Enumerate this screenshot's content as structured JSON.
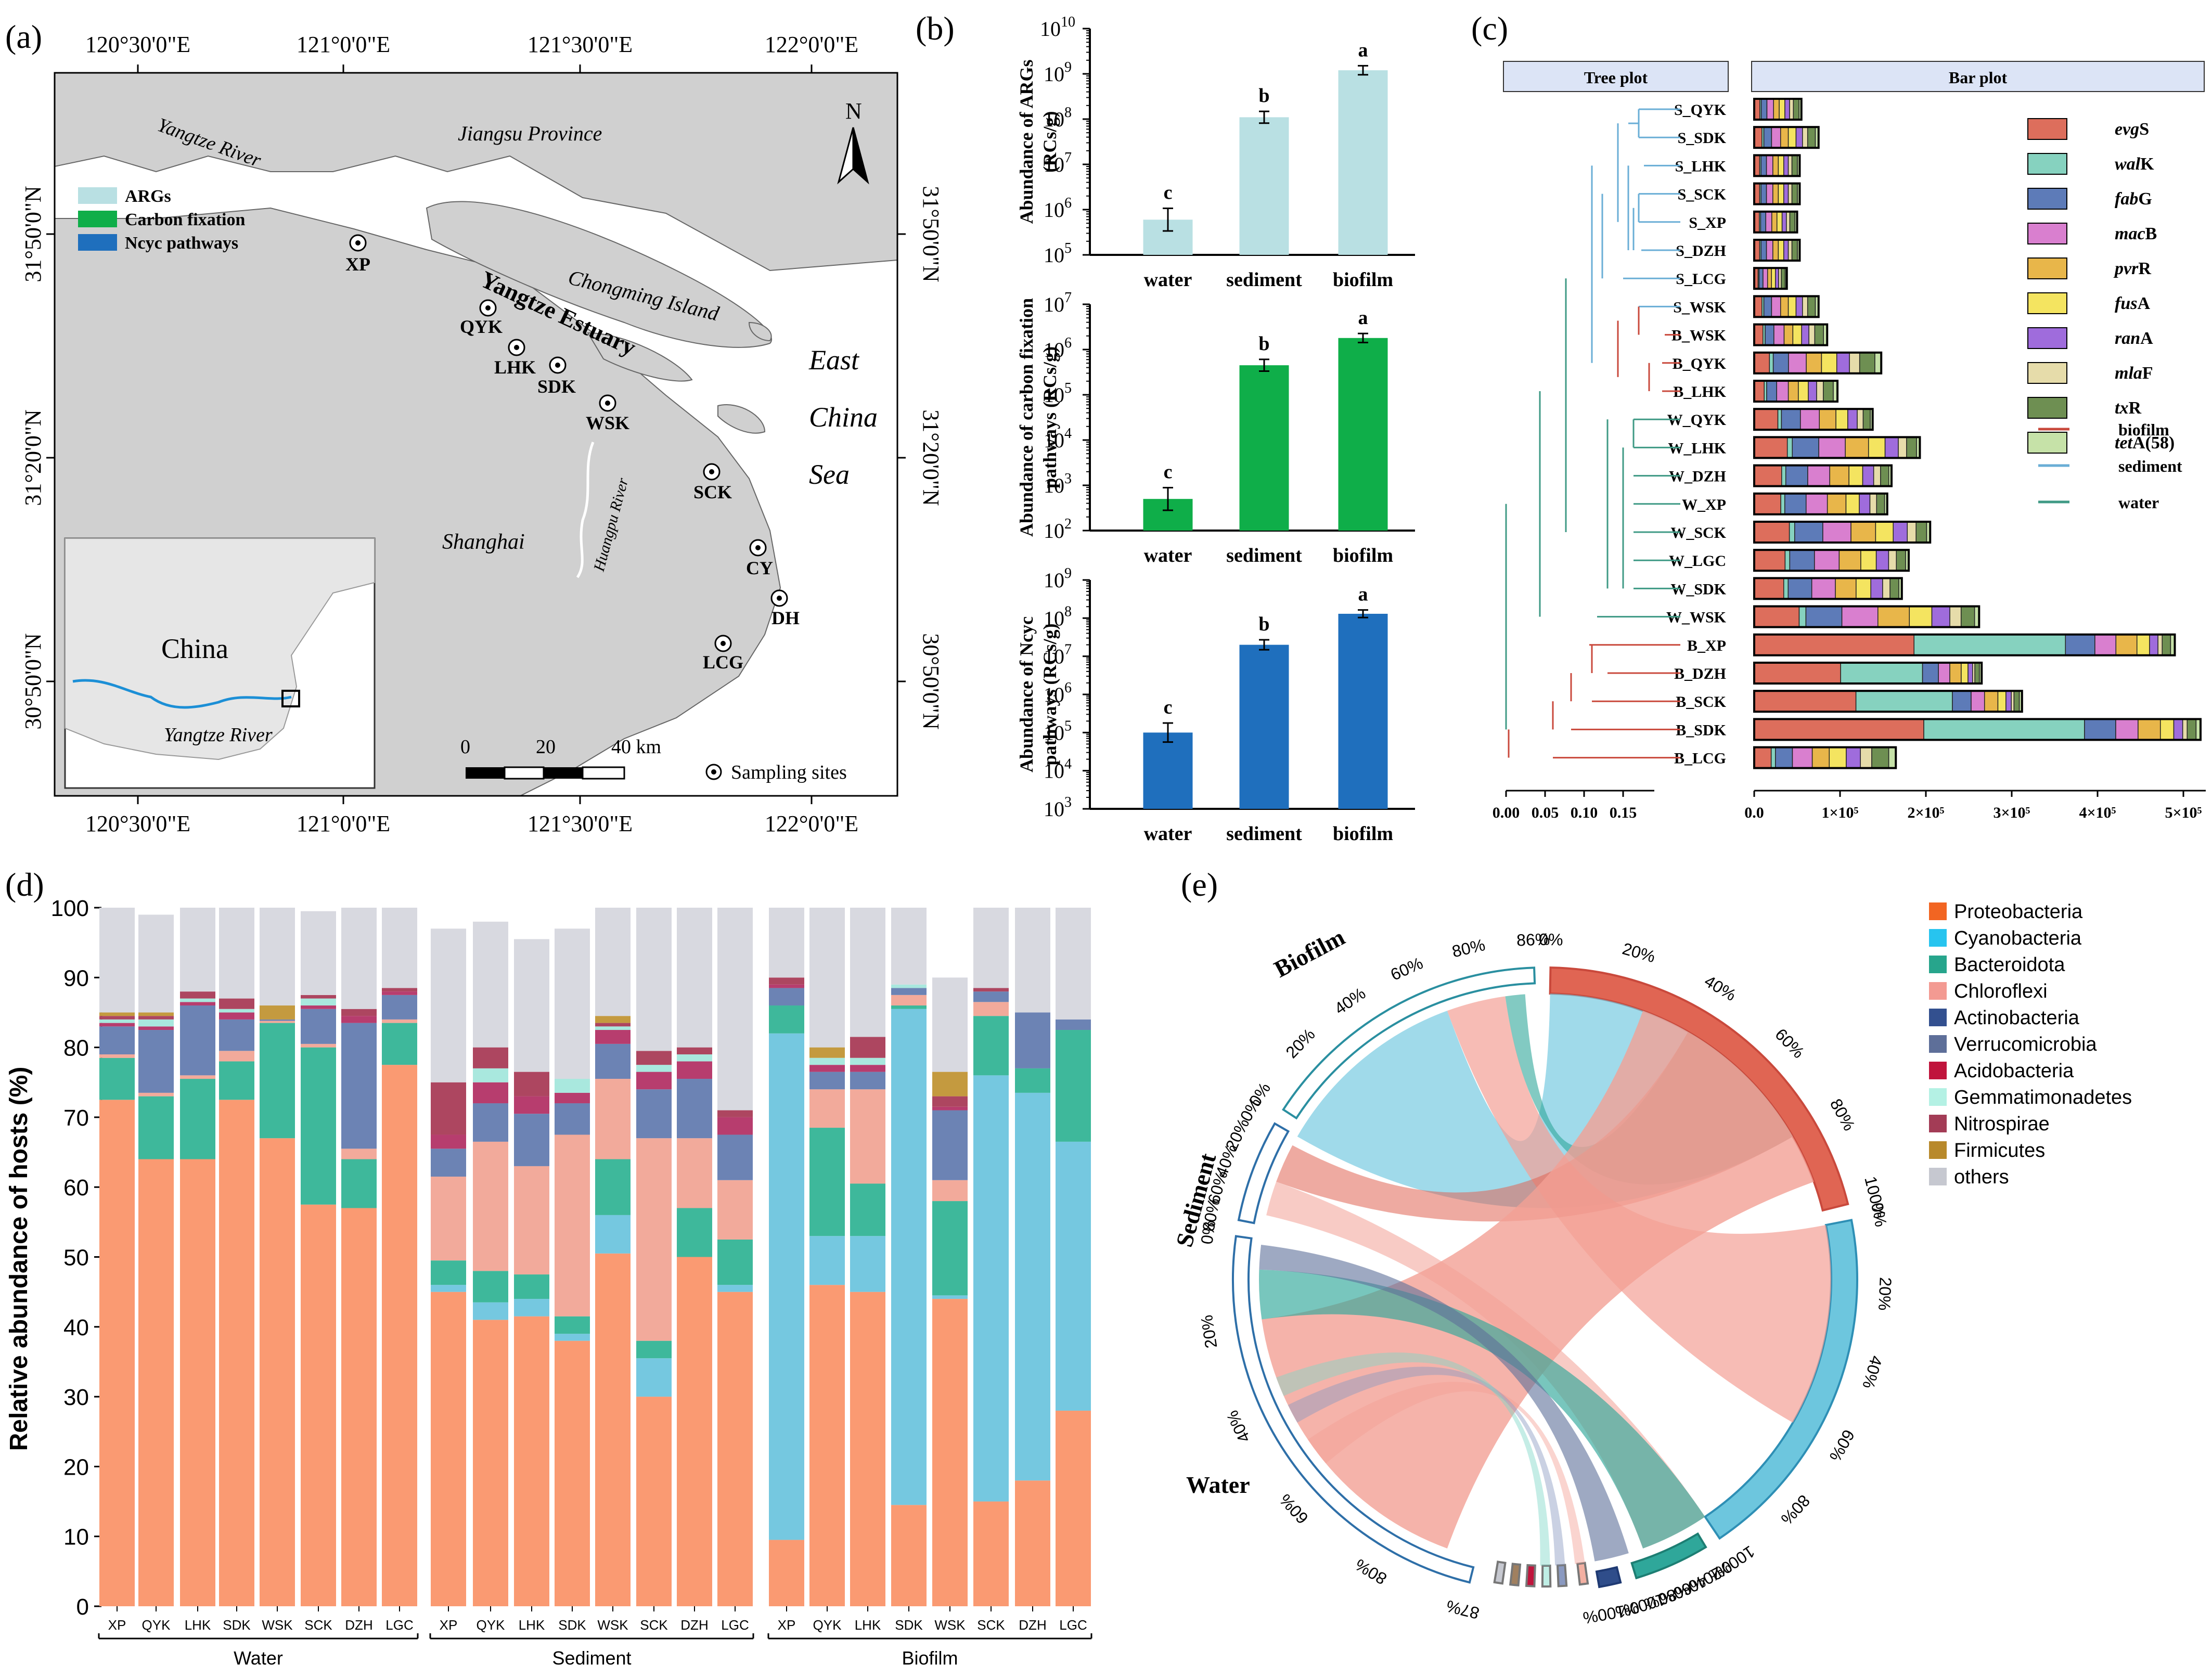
{
  "panel_labels": {
    "a": "(a)",
    "b": "(b)",
    "c": "(c)",
    "d": "(d)",
    "e": "(e)"
  },
  "map": {
    "top_lon": [
      "120°30'0\"E",
      "121°0'0\"E",
      "121°30'0\"E",
      "122°0'0\"E"
    ],
    "bottom_lon": [
      "120°30'0\"E",
      "121°0'0\"E",
      "121°30'0\"E",
      "122°0'0\"E"
    ],
    "left_lat": [
      "31°50'0\"N",
      "31°20'0\"N",
      "30°50'0\"N"
    ],
    "right_lat": [
      "31°50'0\"N",
      "31°20'0\"N",
      "30°50'0\"N"
    ],
    "places": {
      "river": "Yangtze River",
      "jiangsu": "Jiangsu Province",
      "chongming": "Chongming Island",
      "estuary": "Yangtze Estuary",
      "east": "East",
      "china": "China",
      "sea": "Sea",
      "shanghai": "Shanghai",
      "huangpu": "Huangpu River",
      "inset_country": "China",
      "inset_river": "Yangtze River"
    },
    "north": "N",
    "legend": [
      {
        "label": "ARGs",
        "color": "#b9e0e3"
      },
      {
        "label": "Carbon fixation",
        "color": "#0fae49"
      },
      {
        "label": "Ncyc pathways",
        "color": "#1f6fbd"
      }
    ],
    "sites": [
      "XP",
      "QYK",
      "LHK",
      "SDK",
      "WSK",
      "SCK",
      "CY",
      "DH",
      "LCG"
    ],
    "scale": {
      "t0": "0",
      "t1": "20",
      "t2": "40 km"
    },
    "site_legend": "Sampling sites"
  },
  "chart_data": [
    {
      "type": "bar",
      "panel": "b-top",
      "ylabel": "Abundance of ARGs (RCs/g)",
      "ylabel_1": "Abundance of ARGs",
      "ylabel_2": "(RCs/g)",
      "scale": "log",
      "ylim": [
        100000,
        10000000000
      ],
      "ytick_exp": [
        "5",
        "6",
        "7",
        "8",
        "9",
        "10"
      ],
      "categories": [
        "water",
        "sediment",
        "biofilm"
      ],
      "values": [
        600000,
        110000000,
        1200000000
      ],
      "letters": [
        "c",
        "b",
        "a"
      ],
      "color": "#b9e0e3"
    },
    {
      "type": "bar",
      "panel": "b-mid",
      "ylabel": "Abundance of carbon fixation pathways (RCs/g)",
      "ylabel_1": "Abundance of carbon fixation",
      "ylabel_2": "pathways (RCs/g)",
      "scale": "log",
      "ylim": [
        100,
        10000000
      ],
      "ytick_exp": [
        "2",
        "3",
        "4",
        "5",
        "6",
        "7"
      ],
      "categories": [
        "water",
        "sediment",
        "biofilm"
      ],
      "values": [
        500,
        450000,
        1800000
      ],
      "letters": [
        "c",
        "b",
        "a"
      ],
      "color": "#0fae49"
    },
    {
      "type": "bar",
      "panel": "b-bot",
      "ylabel": "Abundance of Ncyc pathways (RCs/g)",
      "ylabel_1": "Abundance of Ncyc",
      "ylabel_2": "pathways (RCs/g)",
      "scale": "log",
      "ylim": [
        1000,
        1000000000
      ],
      "ytick_exp": [
        "3",
        "4",
        "5",
        "6",
        "7",
        "8",
        "9"
      ],
      "categories": [
        "water",
        "sediment",
        "biofilm"
      ],
      "values": [
        100000,
        20000000,
        130000000
      ],
      "letters": [
        "c",
        "b",
        "a"
      ],
      "color": "#1f6fbd"
    },
    {
      "type": "bar",
      "panel": "c",
      "orientation": "horizontal",
      "stacked": true,
      "title_tree": "Tree plot",
      "title_bar": "Bar plot",
      "tree_ticks": [
        "0.00",
        "0.05",
        "0.10",
        "0.15"
      ],
      "xticks": [
        "0.0",
        "1×10⁵",
        "2×10⁵",
        "3×10⁵",
        "4×10⁵",
        "5×10⁵"
      ],
      "legend_genes": [
        [
          "evg",
          "S"
        ],
        [
          "wal",
          "K"
        ],
        [
          "fab",
          "G"
        ],
        [
          "mac",
          "B"
        ],
        [
          "pvr",
          "R"
        ],
        [
          "fus",
          "A"
        ],
        [
          "ran",
          "A"
        ],
        [
          "mla",
          "F"
        ],
        [
          "tx",
          "R"
        ],
        [
          "tet",
          "A(58)"
        ]
      ],
      "gene_colors": [
        "#dd6e5c",
        "#86d2bf",
        "#5d7bb8",
        "#d97fcf",
        "#e8b64a",
        "#f4e460",
        "#9f6cdc",
        "#e6dcaa",
        "#6e8f52",
        "#c6e2a8"
      ],
      "legend_habitat": [
        {
          "label": "biofilm",
          "color": "#c9493c"
        },
        {
          "label": "sediment",
          "color": "#6aaed6"
        },
        {
          "label": "water",
          "color": "#3f9a85"
        }
      ],
      "rows": [
        {
          "label": "S_QYK",
          "total": 55000
        },
        {
          "label": "S_SDK",
          "total": 75000
        },
        {
          "label": "S_LHK",
          "total": 53000
        },
        {
          "label": "S_SCK",
          "total": 53000
        },
        {
          "label": "S_XP",
          "total": 50000
        },
        {
          "label": "S_DZH",
          "total": 53000
        },
        {
          "label": "S_LCG",
          "total": 38000
        },
        {
          "label": "S_WSK",
          "total": 75000
        },
        {
          "label": "B_WSK",
          "total": 85000
        },
        {
          "label": "B_QYK",
          "total": 148000
        },
        {
          "label": "B_LHK",
          "total": 97000
        },
        {
          "label": "W_QYK",
          "total": 138000
        },
        {
          "label": "W_LHK",
          "total": 193000
        },
        {
          "label": "W_DZH",
          "total": 160000
        },
        {
          "label": "W_XP",
          "total": 155000
        },
        {
          "label": "W_SCK",
          "total": 205000
        },
        {
          "label": "W_LGC",
          "total": 180000
        },
        {
          "label": "W_SDK",
          "total": 172000
        },
        {
          "label": "W_WSK",
          "total": 262000
        },
        {
          "label": "B_XP",
          "total": 490000
        },
        {
          "label": "B_DZH",
          "total": 265000
        },
        {
          "label": "B_SCK",
          "total": 312000
        },
        {
          "label": "B_SDK",
          "total": 520000
        },
        {
          "label": "B_LCG",
          "total": 165000
        }
      ]
    },
    {
      "type": "bar",
      "panel": "d",
      "stacked": true,
      "ylabel": "Relative abundance of hosts (%)",
      "ylim": [
        0,
        100
      ],
      "yticks": [
        "0",
        "10",
        "20",
        "30",
        "40",
        "50",
        "60",
        "70",
        "80",
        "90",
        "100"
      ],
      "groups": [
        {
          "name": "Water",
          "sites": [
            "XP",
            "QYK",
            "LHK",
            "SDK",
            "WSK",
            "SCK",
            "DZH",
            "LGC"
          ]
        },
        {
          "name": "Sediment",
          "sites": [
            "XP",
            "QYK",
            "LHK",
            "SDK",
            "WSK",
            "SCK",
            "DZH",
            "LGC"
          ]
        },
        {
          "name": "Biofilm",
          "sites": [
            "XP",
            "QYK",
            "LHK",
            "SDK",
            "WSK",
            "SCK",
            "DZH",
            "LGC"
          ]
        }
      ],
      "series_names": [
        "Proteobacteria",
        "Cyanobacteria",
        "Bacteroidota",
        "Chloroflexi",
        "Actinobacteria",
        "Verrucomicrobia",
        "Acidobacteria",
        "Gemmatimonadetes",
        "Nitrospirae",
        "Firmicutes",
        "others"
      ],
      "bar_colors": [
        "#fa9a72",
        "#75c8e0",
        "#3eb89b",
        "#f2aa9b",
        "#4a64a8",
        "#6c83b4",
        "#b73d6e",
        "#a9e8de",
        "#ad4660",
        "#c49a3f",
        "#d8d9e0"
      ],
      "bars": [
        [
          72.5,
          0,
          6,
          0.5,
          0,
          4,
          0.5,
          0.5,
          0.5,
          0.5,
          15
        ],
        [
          64,
          0,
          9,
          0.5,
          0,
          9,
          0.5,
          1,
          0.5,
          0.5,
          14
        ],
        [
          64,
          0,
          11.5,
          0.5,
          0,
          10,
          0.5,
          0.5,
          1,
          0,
          12
        ],
        [
          72.5,
          0,
          5.5,
          1.5,
          0,
          4.5,
          1,
          0.5,
          1.5,
          0,
          13
        ],
        [
          67,
          0,
          16.5,
          0.3,
          0,
          0.2,
          0,
          0,
          0,
          2,
          14
        ],
        [
          57.5,
          0,
          22.5,
          0.5,
          0,
          5,
          0.5,
          1,
          0.5,
          0,
          12
        ],
        [
          57,
          0,
          7,
          1.5,
          0,
          18,
          1,
          0,
          1,
          0,
          14.5
        ],
        [
          77.5,
          0,
          6,
          0.5,
          0,
          3.5,
          0.5,
          0,
          0.5,
          0,
          11.5
        ],
        [
          45,
          1,
          3.5,
          12,
          0,
          4,
          2,
          0,
          7.5,
          0,
          22
        ],
        [
          41,
          2.5,
          4.5,
          18.5,
          0,
          5.5,
          3,
          2,
          3,
          0,
          18
        ],
        [
          41.5,
          2.5,
          3.5,
          15.5,
          0,
          7.5,
          2.5,
          0,
          3.5,
          0,
          19
        ],
        [
          38,
          1,
          2.5,
          26,
          0,
          4.5,
          1.5,
          2,
          0,
          0,
          21.5
        ],
        [
          50.5,
          5.5,
          8,
          11.5,
          0,
          5,
          2,
          0.5,
          0.5,
          1,
          15.5
        ],
        [
          30,
          5.5,
          2.5,
          29,
          0,
          7,
          2.5,
          1,
          2,
          0,
          20.5
        ],
        [
          50,
          0,
          7,
          10,
          0,
          8.5,
          2.5,
          1,
          1,
          0,
          20
        ],
        [
          45,
          1,
          6.5,
          8.5,
          0,
          6.5,
          2.5,
          0,
          1,
          0,
          29
        ],
        [
          9.5,
          72.5,
          4,
          0,
          0,
          2.5,
          0.5,
          0,
          1,
          0,
          10
        ],
        [
          46,
          7,
          15.5,
          5.5,
          0,
          2.5,
          1,
          1,
          0,
          1.5,
          20
        ],
        [
          45,
          8,
          7.5,
          13.5,
          0,
          2.5,
          1,
          1,
          3,
          0,
          18.5
        ],
        [
          14.5,
          71,
          0.5,
          1.5,
          0,
          1,
          0,
          0.5,
          0,
          0,
          11
        ],
        [
          44,
          0.5,
          13.5,
          3,
          0,
          10,
          0.5,
          0,
          1.5,
          3.5,
          13.5
        ],
        [
          15,
          61,
          8.5,
          2,
          0,
          1.5,
          0,
          0,
          0.5,
          0,
          11.5
        ],
        [
          18,
          55.5,
          3.5,
          0,
          0,
          8,
          0,
          0,
          0,
          0,
          15
        ],
        [
          28,
          38.5,
          16,
          0,
          0,
          1.5,
          0,
          0,
          0,
          0,
          16
        ]
      ]
    },
    {
      "type": "chord",
      "panel": "e",
      "legend": [
        {
          "label": "Proteobacteria",
          "color": "#f26522"
        },
        {
          "label": "Cyanobacteria",
          "color": "#27c4ef"
        },
        {
          "label": "Bacteroidota",
          "color": "#27a58c"
        },
        {
          "label": "Chloroflexi",
          "color": "#f39a92"
        },
        {
          "label": "Actinobacteria",
          "color": "#33508f"
        },
        {
          "label": "Verrucomicrobia",
          "color": "#5e6f99"
        },
        {
          "label": "Acidobacteria",
          "color": "#c0143c"
        },
        {
          "label": "Gemmatimonadetes",
          "color": "#b4f1e4"
        },
        {
          "label": "Nitrospirae",
          "color": "#a33c56"
        },
        {
          "label": "Firmicutes",
          "color": "#b8892b"
        },
        {
          "label": "others",
          "color": "#c6c8d0"
        }
      ],
      "habitat_labels": {
        "biofilm": "Biofilm",
        "sediment": "Sediment",
        "water": "Water"
      },
      "biofilm_ticks": [
        "0%",
        "20%",
        "40%",
        "60%",
        "80%",
        "86%"
      ],
      "sediment_ticks": [
        "0%",
        "20%",
        "40%",
        "60%",
        "80%"
      ],
      "water_ticks": [
        "0%",
        "20%",
        "40%",
        "60%",
        "80%",
        "87%"
      ],
      "proteo_ticks": [
        "0%",
        "20%",
        "40%",
        "60%",
        "80%",
        "100%"
      ],
      "cyano_ticks": [
        "0%",
        "20%",
        "40%",
        "60%",
        "80%",
        "100%"
      ],
      "bacter_ticks": [
        "0%",
        "20%",
        "40%",
        "60%",
        "80%",
        "100%"
      ],
      "actino_ticks": [
        "0%",
        "100%"
      ]
    }
  ]
}
